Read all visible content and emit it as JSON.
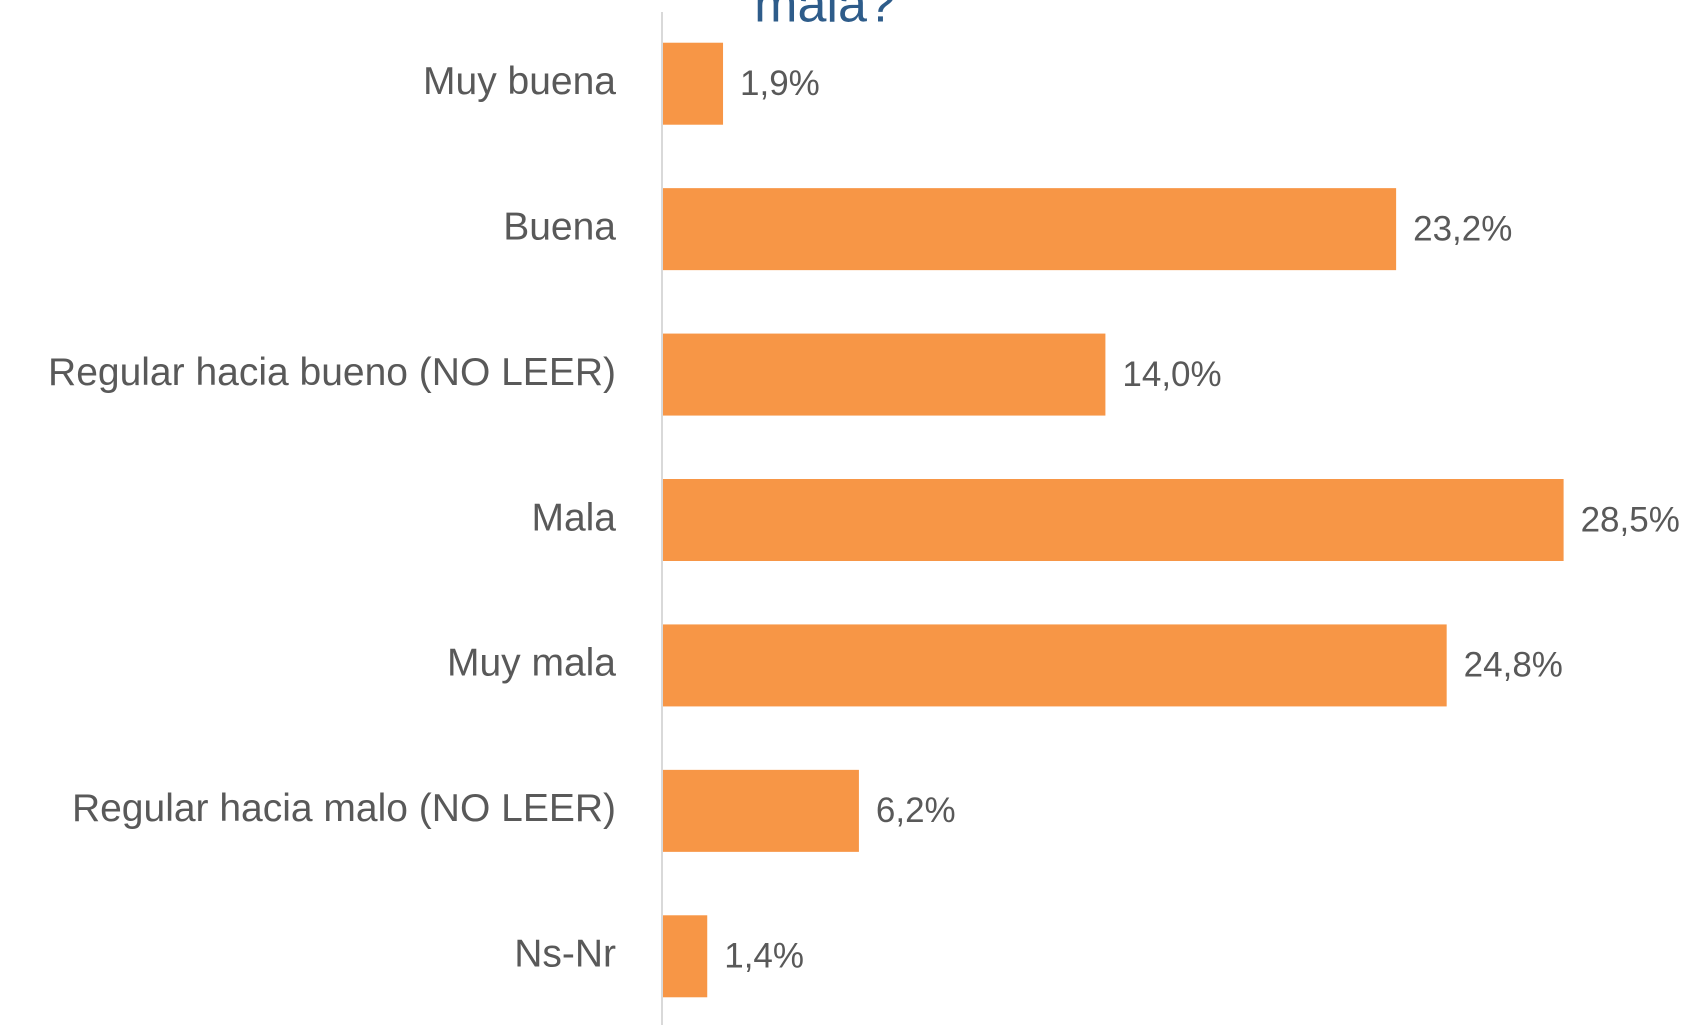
{
  "chart_data": {
    "type": "bar",
    "orientation": "horizontal",
    "title": "mala?",
    "categories": [
      "Muy buena",
      "Buena",
      "Regular hacia bueno (NO LEER)",
      "Mala",
      "Muy mala",
      "Regular hacia malo (NO LEER)",
      "Ns-Nr"
    ],
    "values": [
      1.9,
      23.2,
      14.0,
      28.5,
      24.8,
      6.2,
      1.4
    ],
    "value_labels": [
      "1,9%",
      "23,2%",
      "14,0%",
      "28,5%",
      "24,8%",
      "6,2%",
      "1,4%"
    ],
    "color": "#f79646",
    "xlim": [
      0,
      30
    ]
  }
}
